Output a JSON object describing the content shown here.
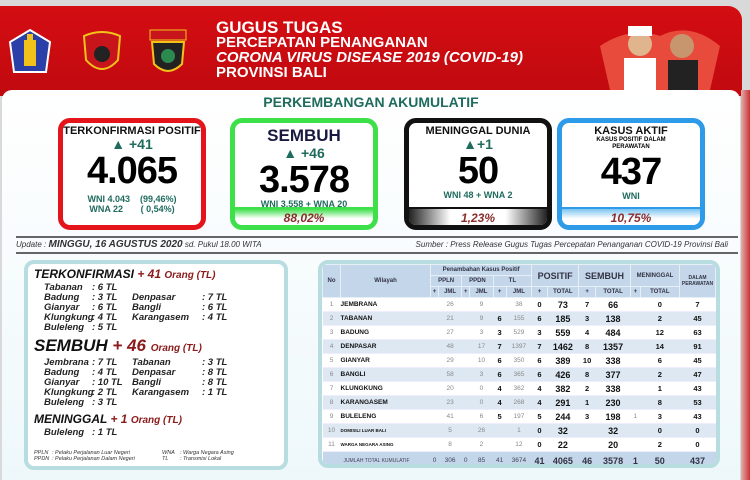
{
  "header": {
    "line1": "GUGUS TUGAS",
    "line2": "PERCEPATAN PENANGANAN",
    "line3": "CORONA VIRUS DISEASE 2019 (COVID-19)",
    "line4": "PROVINSI BALI",
    "logos": [
      "Provinsi Bali",
      "UDAYANA",
      "BALI"
    ]
  },
  "subtitle": "PERKEMBANGAN AKUMULATIF",
  "cards": [
    {
      "title": "TERKONFIRMASI POSITIF",
      "increase": "+41",
      "value": "4.065",
      "line1": "WNI 4.043    (99,46%)",
      "line2": "WNA 22       ( 0,54%)",
      "color": "#e3151a"
    },
    {
      "title": "SEMBUH",
      "increase": "+46",
      "value": "3.578",
      "line1": "WNI 3.558 + WNA 20",
      "pct": "88,02%",
      "color": "#3ee04a"
    },
    {
      "title": "MENINGGAL DUNIA",
      "increase": "+1",
      "value": "50",
      "line1": "WNI 48 + WNA 2",
      "pct": "1,23%",
      "color": "#111111"
    },
    {
      "title": "KASUS AKTIF",
      "subtitle": "KASUS POSITIF DALAM PERAWATAN",
      "value": "437",
      "line1": "WNI",
      "pct": "10,75%",
      "color": "#2e9be8"
    }
  ],
  "update": {
    "label": "Update :",
    "date": "MINGGU, 16 AGUSTUS 2020",
    "time": "sd. Pukul 18.00 WITA",
    "source": "Sumber : Press Release Gugus Tugas Percepatan Penanganan COVID-19 Provinsi Bali"
  },
  "summary": {
    "terkonfirmasi": {
      "title": "TERKONFIRMASI",
      "count": "+ 41",
      "unit": "Orang  (TL)",
      "items": [
        [
          "Tabanan",
          ": 6 TL",
          "",
          ""
        ],
        [
          "Badung",
          ": 3 TL",
          "Denpasar",
          ": 7 TL"
        ],
        [
          "Gianyar",
          ": 6 TL",
          "Bangli",
          ": 6 TL"
        ],
        [
          "Klungkung",
          ": 4 TL",
          "Karangasem",
          ": 4 TL"
        ],
        [
          "Buleleng",
          ": 5 TL",
          "",
          ""
        ]
      ]
    },
    "sembuh": {
      "title": "SEMBUH",
      "count": "+ 46",
      "unit": "Orang (TL)",
      "items": [
        [
          "Jembrana",
          ": 7 TL",
          "Tabanan",
          ": 3 TL"
        ],
        [
          "Badung",
          ": 4 TL",
          "Denpasar",
          ": 8 TL"
        ],
        [
          "Gianyar",
          ": 10 TL",
          "Bangli",
          ": 8 TL"
        ],
        [
          "Klungkung",
          ": 2 TL",
          "Karangasem",
          ": 1 TL"
        ],
        [
          "Buleleng",
          ": 3 TL",
          "",
          ""
        ]
      ]
    },
    "meninggal": {
      "title": "MENINGGAL",
      "count": "+ 1",
      "unit": "Orang  (TL)",
      "items": [
        [
          "Buleleng",
          ": 1 TL",
          "",
          ""
        ]
      ]
    },
    "legend": [
      "PPLN",
      ":  Pelaku Perjalanan Luar Negeri",
      "WNA",
      ":  Warga Negara Asing",
      "PPDN",
      ":  Pelaku Perjalanan Dalam Negeri",
      "TL",
      ":  Transmisi Lokal"
    ]
  },
  "table": {
    "headers": {
      "no": "No",
      "wilayah": "Wilayah",
      "penambahan": "Penambahan Kasus Positif",
      "ppln": "PPLN",
      "ppdn": "PPDN",
      "tl": "TL",
      "positif": "POSITIF",
      "sembuh": "SEMBUH",
      "meninggal": "MENINGGAL",
      "dalam": "DALAM PERAWATAN",
      "plus": "+",
      "jml": "JML",
      "total": "TOTAL"
    },
    "rows": [
      [
        "1",
        "JEMBRANA",
        "",
        "26",
        "",
        "9",
        "",
        "38",
        "0",
        "73",
        "7",
        "66",
        "",
        "0",
        "7"
      ],
      [
        "2",
        "TABANAN",
        "",
        "21",
        "",
        "9",
        "6",
        "155",
        "6",
        "185",
        "3",
        "138",
        "",
        "2",
        "45"
      ],
      [
        "3",
        "BADUNG",
        "",
        "27",
        "",
        "3",
        "3",
        "529",
        "3",
        "559",
        "4",
        "484",
        "",
        "12",
        "63"
      ],
      [
        "4",
        "DENPASAR",
        "",
        "48",
        "",
        "17",
        "7",
        "1397",
        "7",
        "1462",
        "8",
        "1357",
        "",
        "14",
        "91"
      ],
      [
        "5",
        "GIANYAR",
        "",
        "29",
        "",
        "10",
        "6",
        "350",
        "6",
        "389",
        "10",
        "338",
        "",
        "6",
        "45"
      ],
      [
        "6",
        "BANGLI",
        "",
        "58",
        "",
        "3",
        "6",
        "365",
        "6",
        "426",
        "8",
        "377",
        "",
        "2",
        "47"
      ],
      [
        "7",
        "KLUNGKUNG",
        "",
        "20",
        "",
        "0",
        "4",
        "362",
        "4",
        "382",
        "2",
        "338",
        "",
        "1",
        "43"
      ],
      [
        "8",
        "KARANGASEM",
        "",
        "23",
        "",
        "0",
        "4",
        "268",
        "4",
        "291",
        "1",
        "230",
        "",
        "8",
        "53"
      ],
      [
        "9",
        "BULELENG",
        "",
        "41",
        "",
        "6",
        "5",
        "197",
        "5",
        "244",
        "3",
        "198",
        "1",
        "3",
        "43"
      ],
      [
        "10",
        "DOMISILI LUAR BALI",
        "",
        "5",
        "",
        "26",
        "",
        "1",
        "0",
        "32",
        "",
        "32",
        "",
        "0",
        "0"
      ],
      [
        "11",
        "WARGA NEGARA ASING",
        "",
        "8",
        "",
        "2",
        "",
        "12",
        "0",
        "22",
        "",
        "20",
        "",
        "2",
        "0"
      ]
    ],
    "total": [
      "JUMLAH TOTAL KUMULATIF",
      "0",
      "306",
      "0",
      "85",
      "41",
      "3674",
      "41",
      "4065",
      "46",
      "3578",
      "1",
      "50",
      "437"
    ]
  }
}
